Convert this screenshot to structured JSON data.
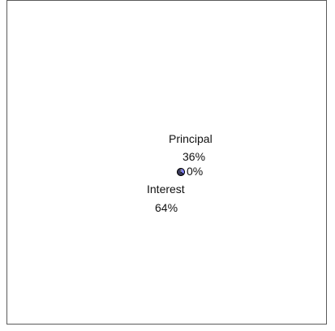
{
  "chart_data": {
    "type": "pie",
    "slices": [
      {
        "label": "Principal",
        "value_label": "36%",
        "percent": 36,
        "color": "#8080ff"
      },
      {
        "label": "Interest",
        "value_label": "64%",
        "percent": 64,
        "color": "#3a3a5a"
      },
      {
        "label": "",
        "value_label": "0%",
        "percent": 0,
        "color": "#ffffcc"
      }
    ],
    "legend": "none",
    "grid": false
  }
}
